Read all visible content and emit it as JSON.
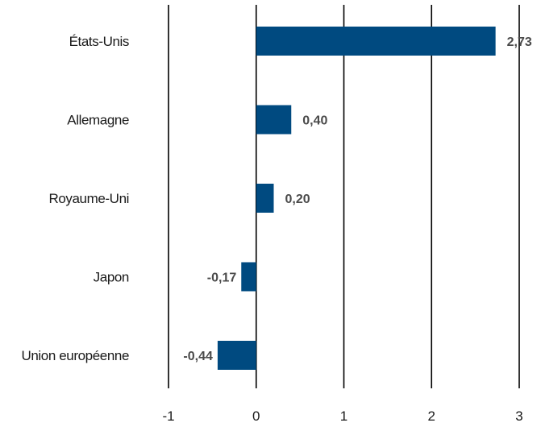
{
  "chart_data": {
    "type": "bar",
    "orientation": "horizontal",
    "title": "",
    "xlabel": "",
    "ylabel": "",
    "categories": [
      "États-Unis",
      "Allemagne",
      "Royaume-Uni",
      "Japon",
      "Union européenne"
    ],
    "values": [
      2.73,
      0.4,
      0.2,
      -0.17,
      -0.44
    ],
    "value_labels": [
      "2,73",
      "0,40",
      "0,20",
      "-0,17",
      "-0,44"
    ],
    "xlim": [
      -1,
      3
    ],
    "x_ticks": [
      -1,
      0,
      1,
      2,
      3
    ],
    "x_tick_labels": [
      "-1",
      "0",
      "1",
      "2",
      "3"
    ],
    "grid": "vertical",
    "legend": "none",
    "colors": {
      "bar": "#004a80",
      "grid": "#000000",
      "label": "#1a1a1a",
      "value_label": "#4a4a4a"
    }
  }
}
